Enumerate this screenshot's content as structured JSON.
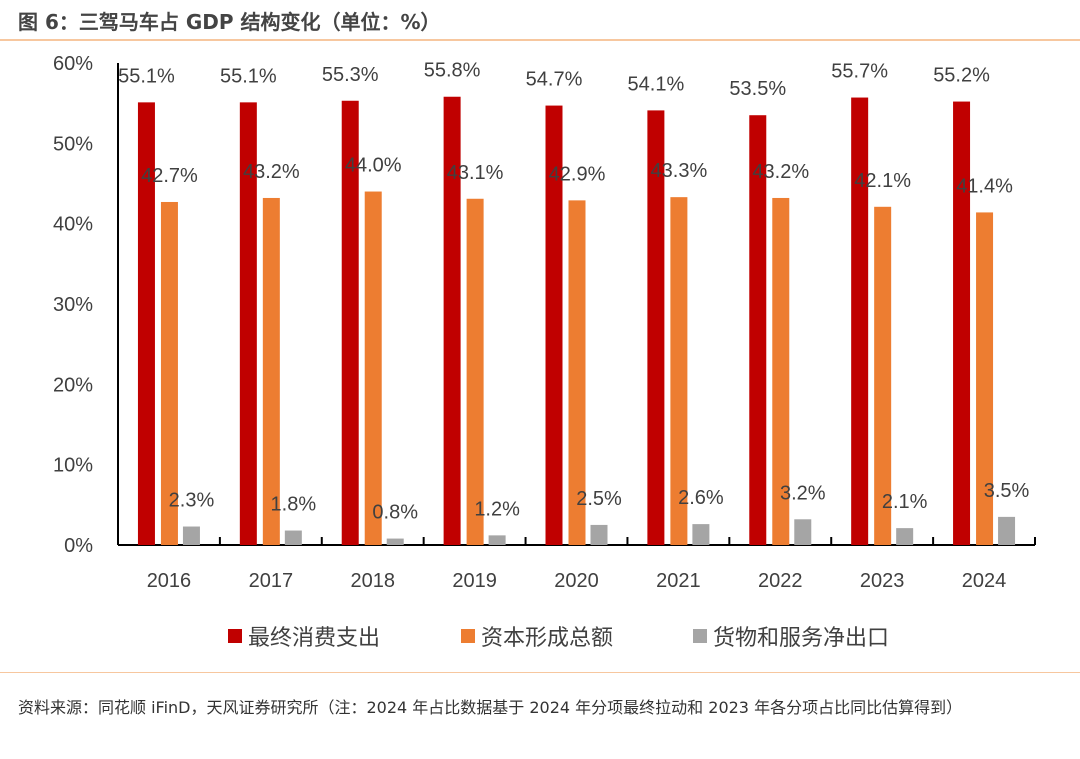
{
  "title": "图 6：三驾马车占 GDP 结构变化（单位：%）",
  "source": "资料来源：同花顺 iFinD，天风证券研究所（注：2024 年占比数据基于 2024 年分项最终拉动和 2023 年各分项占比同比估算得到）",
  "chart_data": {
    "type": "bar",
    "categories": [
      "2016",
      "2017",
      "2018",
      "2019",
      "2020",
      "2021",
      "2022",
      "2023",
      "2024"
    ],
    "series": [
      {
        "name": "最终消费支出",
        "color": "#c00000",
        "values": [
          55.1,
          55.1,
          55.3,
          55.8,
          54.7,
          54.1,
          53.5,
          55.7,
          55.2
        ]
      },
      {
        "name": "资本形成总额",
        "color": "#ed7d31",
        "values": [
          42.7,
          43.2,
          44.0,
          43.1,
          42.9,
          43.3,
          43.2,
          42.1,
          41.4
        ]
      },
      {
        "name": "货物和服务净出口",
        "color": "#a5a5a5",
        "values": [
          2.3,
          1.8,
          0.8,
          1.2,
          2.5,
          2.6,
          3.2,
          2.1,
          3.5
        ]
      }
    ],
    "yticks": [
      "0%",
      "10%",
      "20%",
      "30%",
      "40%",
      "50%",
      "60%"
    ],
    "ylim": [
      0,
      60
    ],
    "data_label_suffix": "%",
    "grid": false,
    "legend": "bottom"
  }
}
